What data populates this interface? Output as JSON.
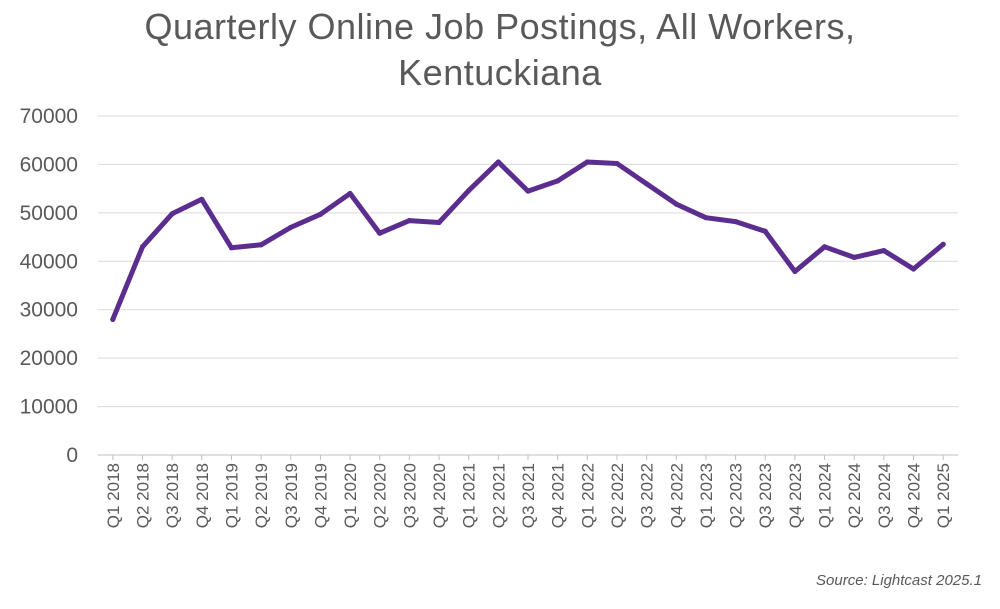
{
  "chart_data": {
    "type": "line",
    "title_lines": [
      "Quarterly Online Job Postings, All Workers,",
      "Kentuckiana"
    ],
    "xlabel": "",
    "ylabel": "",
    "ylim": [
      0,
      70000
    ],
    "yticks": [
      0,
      10000,
      20000,
      30000,
      40000,
      50000,
      60000,
      70000
    ],
    "grid": true,
    "categories": [
      "Q1 2018",
      "Q2 2018",
      "Q3 2018",
      "Q4 2018",
      "Q1 2019",
      "Q2 2019",
      "Q3 2019",
      "Q4 2019",
      "Q1 2020",
      "Q2 2020",
      "Q3 2020",
      "Q4 2020",
      "Q1 2021",
      "Q2 2021",
      "Q3 2021",
      "Q4 2021",
      "Q1 2022",
      "Q2 2022",
      "Q3 2022",
      "Q4 2022",
      "Q1 2023",
      "Q2 2023",
      "Q3 2023",
      "Q4 2023",
      "Q1 2024",
      "Q2 2024",
      "Q3 2024",
      "Q4 2024",
      "Q1 2025"
    ],
    "series": [
      {
        "values": [
          28000,
          43000,
          49800,
          52800,
          42800,
          43400,
          47000,
          49700,
          54000,
          45800,
          48400,
          48000,
          54600,
          60500,
          54500,
          56600,
          60500,
          60200,
          56000,
          51800,
          49000,
          48200,
          46200,
          37900,
          43000,
          40800,
          42200,
          38400,
          43500
        ],
        "color": "#5b2d8e"
      }
    ],
    "source": "Source: Lightcast 2025.1"
  }
}
